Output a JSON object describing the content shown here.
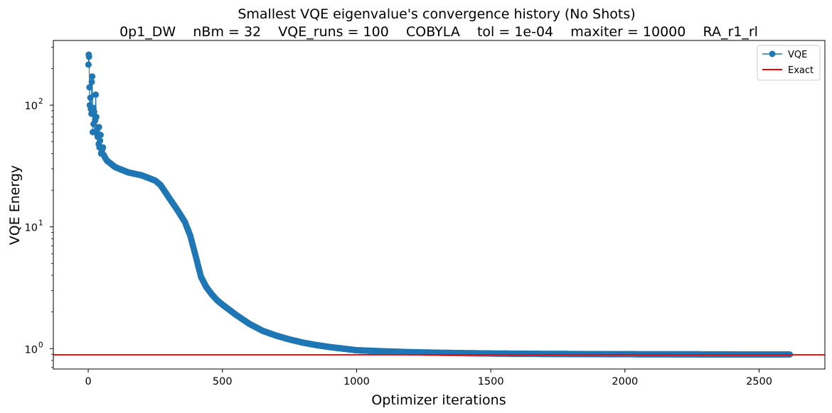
{
  "chart_data": {
    "type": "line",
    "title": "Smallest VQE eigenvalue's convergence history (No Shots)",
    "subtitle": "0p1_DW    nBm = 32    VQE_runs = 100    COBYLA    tol = 1e-04    maxiter = 10000    RA_r1_rl",
    "xlabel": "Optimizer iterations",
    "ylabel": "VQE Energy",
    "xlim": [
      -130,
      2745
    ],
    "ylim": [
      0.68,
      340
    ],
    "yscale": "log",
    "grid": false,
    "legend_position": "top-right",
    "x_ticks": [
      {
        "value": 0,
        "label": "0"
      },
      {
        "value": 500,
        "label": "500"
      },
      {
        "value": 1000,
        "label": "1000"
      },
      {
        "value": 1500,
        "label": "1500"
      },
      {
        "value": 2000,
        "label": "2000"
      },
      {
        "value": 2500,
        "label": "2500"
      }
    ],
    "y_ticks": [
      {
        "value": 1,
        "label": "10",
        "exponent": "0"
      },
      {
        "value": 10,
        "label": "10",
        "exponent": "1"
      },
      {
        "value": 100,
        "label": "10",
        "exponent": "2"
      }
    ],
    "series": [
      {
        "name": "VQE",
        "color": "#1f77b4",
        "marker": "circle",
        "early_points": {
          "x": [
            1,
            2,
            3,
            5,
            6,
            8,
            10,
            12,
            13,
            15,
            17,
            19,
            20,
            22,
            24,
            26,
            28,
            30,
            32,
            33,
            35,
            37,
            39,
            40,
            42,
            44,
            46,
            48,
            50,
            52,
            55,
            58,
            60,
            63,
            66,
            70
          ],
          "y": [
            215,
            260,
            250,
            140,
            100,
            115,
            93,
            85,
            155,
            172,
            60,
            95,
            70,
            88,
            60,
            75,
            122,
            80,
            59,
            63,
            55,
            58,
            48,
            66,
            45,
            51,
            57,
            40,
            41,
            43,
            45,
            39,
            38,
            37,
            36,
            35
          ]
        },
        "curve_points": {
          "x": [
            70,
            100,
            150,
            200,
            250,
            270,
            300,
            330,
            360,
            380,
            400,
            420,
            440,
            460,
            480,
            500,
            550,
            600,
            650,
            700,
            750,
            800,
            850,
            900,
            950,
            1000,
            1100,
            1200,
            1300,
            1400,
            1500,
            1600,
            1700,
            1800,
            1900,
            2000,
            2100,
            2200,
            2300,
            2400,
            2500,
            2615
          ],
          "y": [
            35,
            31,
            28,
            26.5,
            24,
            22,
            17.5,
            14,
            11,
            8.5,
            5.8,
            3.9,
            3.2,
            2.8,
            2.5,
            2.3,
            1.9,
            1.6,
            1.4,
            1.28,
            1.19,
            1.12,
            1.07,
            1.03,
            1.0,
            0.97,
            0.95,
            0.935,
            0.925,
            0.918,
            0.912,
            0.908,
            0.905,
            0.903,
            0.901,
            0.9,
            0.899,
            0.898,
            0.897,
            0.896,
            0.895,
            0.895
          ]
        }
      },
      {
        "name": "Exact",
        "color": "#ff0000",
        "type": "hline",
        "value": 0.89
      }
    ]
  }
}
